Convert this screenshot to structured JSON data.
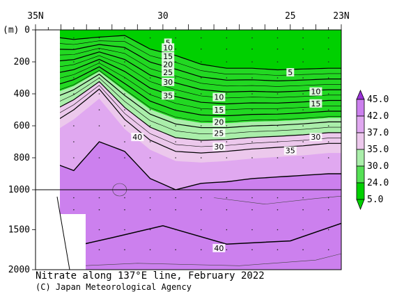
{
  "chart_data": {
    "type": "contour",
    "title": "Nitrate along 137°E line, February 2022",
    "credit": "(C) Japan Meteorological Agency",
    "x_axis": {
      "lat_range": [
        35,
        23
      ],
      "ticks": [
        "35N",
        "30",
        "25",
        "23N"
      ],
      "tick_lats": [
        35,
        30,
        25,
        23
      ]
    },
    "y_axis": {
      "unit_label": "(m)",
      "ticks": [
        "0",
        "200",
        "400",
        "600",
        "800",
        "1000",
        "1500",
        "2000"
      ],
      "tick_depths": [
        0,
        200,
        400,
        600,
        800,
        1000,
        1500,
        2000
      ],
      "upper_range": [
        0,
        1000
      ],
      "lower_range": [
        1000,
        2000
      ]
    },
    "colorbar": {
      "levels": [
        "5.0",
        "24.0",
        "30.0",
        "35.0",
        "37.0",
        "42.0",
        "45.0"
      ],
      "colors": [
        "#00d000",
        "#55e055",
        "#aaeeaa",
        "#ecc8ec",
        "#e0a8f0",
        "#cc80ee",
        "#9a30d8"
      ]
    },
    "contour_labels": [
      {
        "text": "5",
        "lat": 29.8,
        "depth": 80
      },
      {
        "text": "10",
        "lat": 29.8,
        "depth": 110
      },
      {
        "text": "15",
        "lat": 29.8,
        "depth": 165
      },
      {
        "text": "20",
        "lat": 29.8,
        "depth": 215
      },
      {
        "text": "25",
        "lat": 29.8,
        "depth": 265
      },
      {
        "text": "30",
        "lat": 29.8,
        "depth": 325
      },
      {
        "text": "35",
        "lat": 29.8,
        "depth": 410
      },
      {
        "text": "40",
        "lat": 31.0,
        "depth": 670
      },
      {
        "text": "10",
        "lat": 27.8,
        "depth": 420
      },
      {
        "text": "15",
        "lat": 27.8,
        "depth": 500
      },
      {
        "text": "20",
        "lat": 27.8,
        "depth": 575
      },
      {
        "text": "25",
        "lat": 27.8,
        "depth": 645
      },
      {
        "text": "30",
        "lat": 27.8,
        "depth": 730
      },
      {
        "text": "5",
        "lat": 25.0,
        "depth": 265
      },
      {
        "text": "10",
        "lat": 24.0,
        "depth": 385
      },
      {
        "text": "15",
        "lat": 24.0,
        "depth": 460
      },
      {
        "text": "30",
        "lat": 24.0,
        "depth": 670
      },
      {
        "text": "35",
        "lat": 25.0,
        "depth": 755
      },
      {
        "text": "40",
        "lat": 27.8,
        "depth": 1730
      }
    ],
    "fields": {
      "stations_lat": [
        34.5,
        33.5,
        32.5,
        31.5,
        30.5,
        29.5,
        28.5,
        27.5,
        26.5,
        25.5,
        24.5,
        23.5
      ],
      "depth_5": [
        40,
        60,
        45,
        35,
        120,
        160,
        215,
        240,
        240,
        250,
        245,
        240
      ],
      "depth_35": [
        600,
        500,
        370,
        560,
        690,
        760,
        770,
        760,
        745,
        735,
        725,
        710
      ],
      "depth_40": [
        820,
        880,
        700,
        760,
        930,
        1000,
        960,
        950,
        930,
        920,
        910,
        900
      ]
    }
  }
}
